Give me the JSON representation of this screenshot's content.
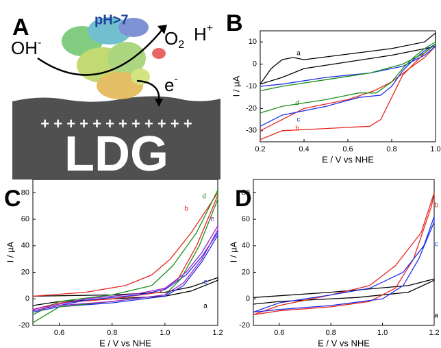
{
  "diagram": {
    "label": "A",
    "ph": "pH>7",
    "reactant": "OH",
    "reactant_charge": "-",
    "product": "O",
    "product_sub": "2",
    "proton": "H",
    "proton_charge": "+",
    "electron": "e",
    "electron_charge": "-",
    "material": "LDG",
    "surface_charge": "+ + + + + + + + + + + +"
  },
  "chart_data": [
    {
      "type": "line",
      "panel": "B",
      "x_label": "E / V vs NHE",
      "y_label": "I / μA",
      "xlim": [
        0.2,
        1.0
      ],
      "xticks": [
        0.2,
        0.4,
        0.6,
        0.8,
        {
          "value": 1.0,
          "label": "1.0"
        }
      ],
      "ylim": [
        -35,
        15
      ],
      "yticks": [
        -30,
        -20,
        -10,
        0,
        10
      ],
      "series": [
        {
          "name": "a",
          "color": "#000000",
          "x": [
            0.2,
            0.25,
            0.3,
            0.35,
            0.4,
            0.6,
            0.8,
            0.95,
            1.0,
            1.0,
            0.9,
            0.8,
            0.6,
            0.4,
            0.3,
            0.2
          ],
          "values": [
            -9,
            -2,
            2,
            3,
            2,
            4.5,
            7,
            10,
            14,
            8,
            6,
            4,
            1,
            -2,
            -6,
            -9
          ]
        },
        {
          "name": "b",
          "color": "#e8261e",
          "x": [
            0.2,
            0.3,
            0.5,
            0.7,
            0.75,
            0.8,
            0.85,
            0.9,
            0.95,
            1.0,
            1.0,
            0.95,
            0.88,
            0.8,
            0.72,
            0.6,
            0.4,
            0.3,
            0.2
          ],
          "values": [
            -34,
            -30,
            -29,
            -28,
            -25,
            -15,
            -5,
            0,
            5,
            9,
            8,
            3,
            -2,
            -8,
            -12,
            -16,
            -20,
            -25,
            -30
          ]
        },
        {
          "name": "c",
          "color": "#1f2ee6",
          "x": [
            0.2,
            0.3,
            0.5,
            0.65,
            0.75,
            0.8,
            0.85,
            0.9,
            0.95,
            1.0,
            1.0,
            0.95,
            0.85,
            0.7,
            0.5,
            0.3,
            0.2
          ],
          "values": [
            -28,
            -23,
            -19,
            -15,
            -14,
            -10,
            -3,
            2,
            6,
            9,
            8,
            4,
            -1,
            -4,
            -6,
            -9,
            -10
          ]
        },
        {
          "name": "d",
          "color": "#1a8f1a",
          "x": [
            0.2,
            0.3,
            0.5,
            0.65,
            0.73,
            0.8,
            0.85,
            0.9,
            0.95,
            1.0,
            1.0,
            0.95,
            0.85,
            0.7,
            0.5,
            0.3,
            0.2
          ],
          "values": [
            -22,
            -19,
            -16,
            -13,
            -13,
            -8,
            -2,
            3,
            7,
            10,
            9,
            5,
            0,
            -4,
            -7,
            -10,
            -12
          ]
        }
      ]
    },
    {
      "type": "line",
      "panel": "C",
      "x_label": "E / V vs NHE",
      "y_label": "I / μA",
      "xlim": [
        0.5,
        1.2
      ],
      "xticks": [
        0.6,
        0.8,
        {
          "value": 1.0,
          "label": "1.0"
        },
        1.2
      ],
      "ylim": [
        -20,
        90
      ],
      "yticks": [
        -20,
        0,
        20,
        40,
        60,
        80
      ],
      "series": [
        {
          "name": "a",
          "color": "#000000",
          "x": [
            0.5,
            0.8,
            1.0,
            1.1,
            1.2,
            1.2,
            1.1,
            1.0,
            0.8,
            0.6,
            0.5
          ],
          "values": [
            2,
            3,
            5,
            9,
            16,
            14,
            6,
            2,
            0,
            -2,
            -5
          ]
        },
        {
          "name": "b",
          "color": "#e8261e",
          "x": [
            0.5,
            0.7,
            0.85,
            0.95,
            1.02,
            1.1,
            1.2,
            1.2,
            1.12,
            1.05,
            0.98,
            0.8,
            0.6,
            0.5
          ],
          "values": [
            2,
            5,
            10,
            18,
            30,
            50,
            80,
            78,
            40,
            15,
            5,
            0,
            -3,
            -8
          ]
        },
        {
          "name": "c",
          "color": "#1f2ee6",
          "x": [
            0.5,
            0.7,
            0.9,
            1.0,
            1.08,
            1.14,
            1.2,
            1.2,
            1.14,
            1.07,
            1.0,
            0.8,
            0.6,
            0.5
          ],
          "values": [
            -9,
            -1,
            3,
            7,
            18,
            32,
            50,
            48,
            28,
            10,
            2,
            -3,
            -6,
            -10
          ]
        },
        {
          "name": "d",
          "color": "#1a8f1a",
          "x": [
            0.5,
            0.6,
            0.8,
            0.95,
            1.03,
            1.12,
            1.2,
            1.2,
            1.13,
            1.06,
            1.0,
            0.8,
            0.6,
            0.5
          ],
          "values": [
            -12,
            -2,
            3,
            10,
            25,
            50,
            82,
            75,
            40,
            15,
            3,
            -2,
            -6,
            -18
          ]
        },
        {
          "name": "e",
          "color": "#9a1fd0",
          "x": [
            0.5,
            0.7,
            0.9,
            1.0,
            1.08,
            1.14,
            1.2,
            1.2,
            1.14,
            1.07,
            1.0,
            0.8,
            0.6,
            0.5
          ],
          "values": [
            -8,
            0,
            4,
            8,
            20,
            35,
            55,
            52,
            30,
            12,
            3,
            -2,
            -5,
            -9
          ]
        }
      ]
    },
    {
      "type": "line",
      "panel": "D",
      "x_label": "E / V vs NHE",
      "y_label": "I / μA",
      "xlim": [
        0.5,
        1.2
      ],
      "xticks": [
        0.6,
        0.8,
        {
          "value": 1.0,
          "label": "1.0"
        },
        1.2
      ],
      "ylim": [
        -20,
        90
      ],
      "yticks": [
        -20,
        0,
        20,
        40,
        60,
        80
      ],
      "series": [
        {
          "name": "a",
          "color": "#000000",
          "x": [
            0.5,
            0.8,
            1.1,
            1.2,
            1.2,
            1.1,
            0.9,
            0.6,
            0.5
          ],
          "values": [
            1,
            5,
            10,
            15,
            14,
            5,
            1,
            -2,
            -4
          ]
        },
        {
          "name": "b",
          "color": "#e8261e",
          "x": [
            0.5,
            0.6,
            0.8,
            0.95,
            1.05,
            1.15,
            1.2,
            1.19,
            1.12,
            1.05,
            0.95,
            0.8,
            0.6,
            0.5
          ],
          "values": [
            -12,
            -5,
            3,
            10,
            25,
            50,
            80,
            70,
            30,
            8,
            -2,
            -6,
            -9,
            -12
          ]
        },
        {
          "name": "c",
          "color": "#1f2ee6",
          "x": [
            0.5,
            0.6,
            0.8,
            0.95,
            1.08,
            1.16,
            1.2,
            1.2,
            1.14,
            1.08,
            1.0,
            0.8,
            0.6,
            0.5
          ],
          "values": [
            -10,
            -3,
            3,
            8,
            20,
            40,
            62,
            58,
            30,
            10,
            0,
            -5,
            -8,
            -10
          ]
        }
      ]
    }
  ]
}
